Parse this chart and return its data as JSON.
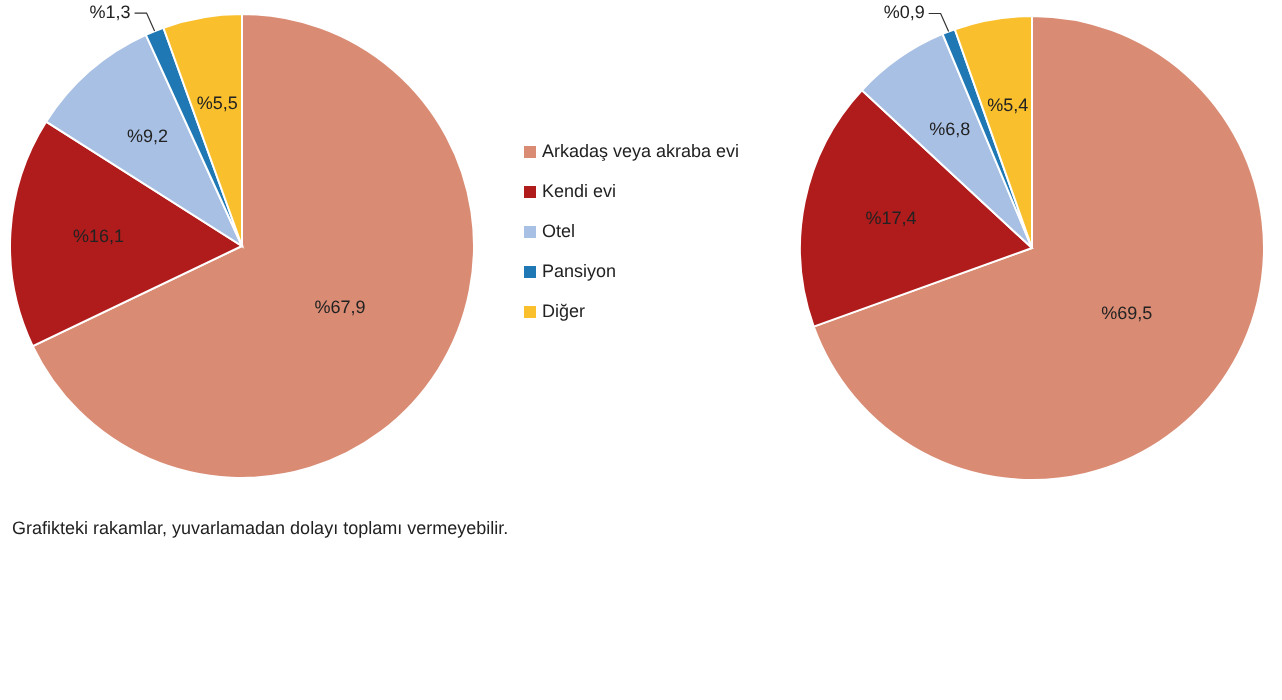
{
  "chart_data": [
    {
      "type": "pie",
      "categories": [
        "Arkadaş veya akraba evi",
        "Kendi evi",
        "Otel",
        "Pansiyon",
        "Diğer"
      ],
      "values": [
        67.9,
        16.1,
        9.2,
        1.3,
        5.5
      ],
      "colors": [
        "#d98b73",
        "#b01b1b",
        "#a8c0e4",
        "#1f78b4",
        "#f9bf2c"
      ],
      "value_labels": [
        "%67,9",
        "%16,1",
        "%9,2",
        "%1,3",
        "%5,5"
      ],
      "legend": "right",
      "annotations": [
        "Grafikteki rakamlar, yuvarlamadan dolayı toplamı vermeyebilir."
      ]
    },
    {
      "type": "pie",
      "categories": [
        null,
        null,
        null,
        null,
        null
      ],
      "values": [
        69.5,
        17.4,
        6.8,
        0.9,
        5.4
      ],
      "colors": [
        "#d98b73",
        "#b01b1b",
        "#a8c0e4",
        "#1f78b4",
        "#f9bf2c"
      ],
      "value_labels": [
        "%69,5",
        "%17,4",
        "%6,8",
        "%0,9",
        "%5,4"
      ]
    }
  ]
}
